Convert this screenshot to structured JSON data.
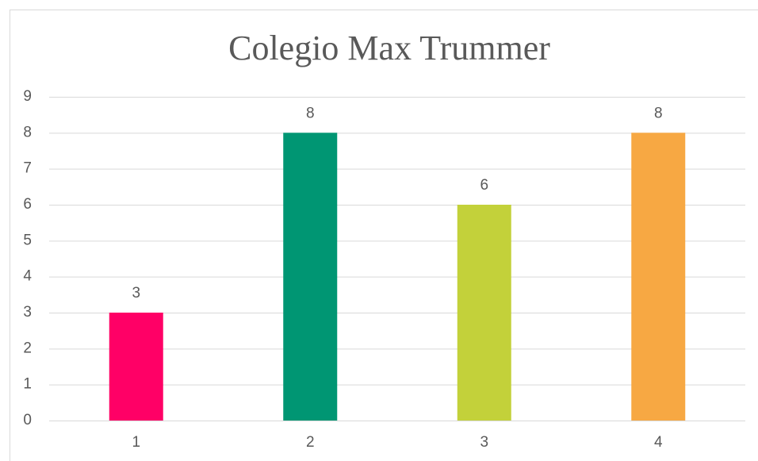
{
  "chart_data": {
    "type": "bar",
    "title": "Colegio Max Trummer",
    "categories": [
      "1",
      "2",
      "3",
      "4"
    ],
    "values": [
      3,
      8,
      6,
      8
    ],
    "colors": [
      "#ff0066",
      "#009673",
      "#c3d13a",
      "#f7a843"
    ],
    "ylim": [
      0,
      9
    ],
    "yticks": [
      0,
      1,
      2,
      3,
      4,
      5,
      6,
      7,
      8,
      9
    ],
    "grid": true,
    "data_labels": true
  }
}
